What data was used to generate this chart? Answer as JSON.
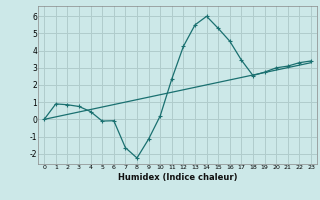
{
  "xlabel": "Humidex (Indice chaleur)",
  "bg_color": "#cce8e8",
  "grid_color": "#b0cccc",
  "line_color": "#1a7070",
  "xlim": [
    -0.5,
    23.5
  ],
  "ylim": [
    -2.6,
    6.6
  ],
  "yticks": [
    -2,
    -1,
    0,
    1,
    2,
    3,
    4,
    5,
    6
  ],
  "xticks": [
    0,
    1,
    2,
    3,
    4,
    5,
    6,
    7,
    8,
    9,
    10,
    11,
    12,
    13,
    14,
    15,
    16,
    17,
    18,
    19,
    20,
    21,
    22,
    23
  ],
  "curve1_x": [
    0,
    1,
    2,
    3,
    4,
    5,
    6,
    7,
    8,
    9,
    10,
    11,
    12,
    13,
    14,
    15,
    16,
    17,
    18,
    19,
    20,
    21,
    22,
    23
  ],
  "curve1_y": [
    0.0,
    0.9,
    0.85,
    0.75,
    0.45,
    -0.1,
    -0.08,
    -1.65,
    -2.25,
    -1.15,
    0.2,
    2.35,
    4.25,
    5.5,
    6.0,
    5.3,
    4.55,
    3.45,
    2.55,
    2.75,
    3.0,
    3.1,
    3.3,
    3.4
  ],
  "curve2_x": [
    0,
    23
  ],
  "curve2_y": [
    0.0,
    3.3
  ],
  "marker": "+"
}
